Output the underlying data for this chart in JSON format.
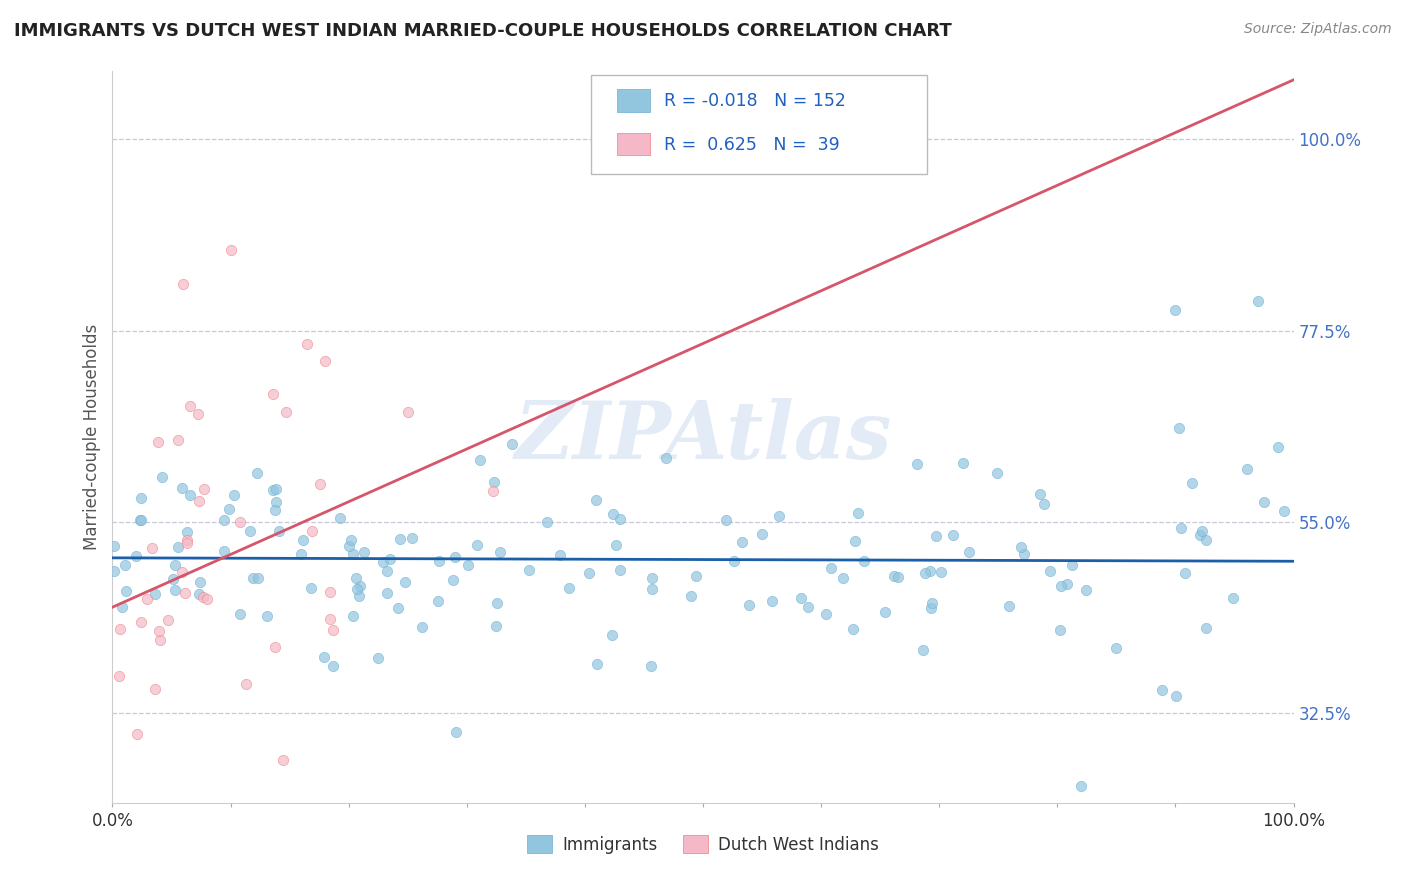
{
  "title": "IMMIGRANTS VS DUTCH WEST INDIAN MARRIED-COUPLE HOUSEHOLDS CORRELATION CHART",
  "source": "Source: ZipAtlas.com",
  "ylabel": "Married-couple Households",
  "xlim": [
    0.0,
    1.0
  ],
  "ylim": [
    0.22,
    1.08
  ],
  "yticks": [
    0.325,
    0.55,
    0.775,
    1.0
  ],
  "ytick_labels": [
    "32.5%",
    "55.0%",
    "77.5%",
    "100.0%"
  ],
  "blue_color": "#92c5de",
  "blue_edge_color": "#6baed6",
  "pink_color": "#f4b8c8",
  "pink_edge_color": "#f08080",
  "blue_line_color": "#1a5fa8",
  "pink_line_color": "#d6556b",
  "R_blue": -0.018,
  "N_blue": 152,
  "R_pink": 0.625,
  "N_pink": 39,
  "legend_R_color": "#2060c0",
  "legend_label_color": "#333333",
  "ytick_color": "#4472c4",
  "xtick_color": "#333333",
  "watermark": "ZIPAtlas",
  "background_color": "#ffffff",
  "grid_color": "#c8c8d8",
  "title_color": "#222222",
  "source_color": "#888888",
  "blue_line_y0": 0.508,
  "blue_line_y1": 0.504,
  "pink_line_y0": 0.45,
  "pink_line_slope": 0.62,
  "marker_size": 55,
  "marker_alpha": 0.7
}
